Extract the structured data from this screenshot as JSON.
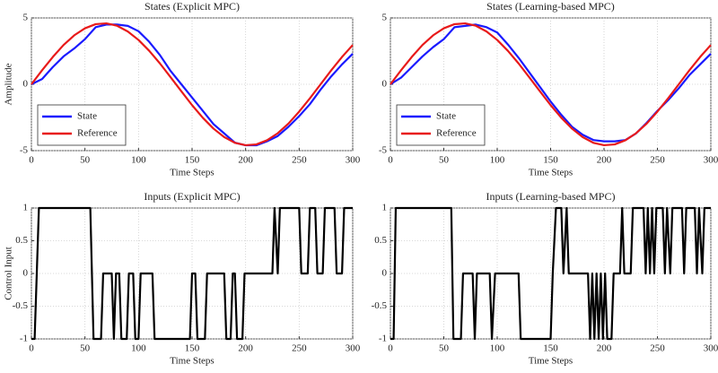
{
  "chart_data": [
    {
      "type": "line",
      "title": "States (Explicit MPC)",
      "xlabel": "Time Steps",
      "ylabel": "Amplitude",
      "x": [
        0,
        10,
        20,
        30,
        40,
        50,
        60,
        70,
        80,
        90,
        100,
        110,
        120,
        130,
        140,
        150,
        160,
        170,
        180,
        190,
        200,
        210,
        220,
        230,
        240,
        250,
        260,
        270,
        280,
        290,
        300
      ],
      "series": [
        {
          "name": "State",
          "color": "#1a1aff",
          "values": [
            0,
            0.4,
            1.3,
            2.1,
            2.7,
            3.4,
            4.3,
            4.5,
            4.5,
            4.4,
            4.0,
            3.2,
            2.2,
            1.0,
            0.0,
            -1.0,
            -2.0,
            -3.0,
            -3.7,
            -4.4,
            -4.6,
            -4.6,
            -4.3,
            -3.9,
            -3.2,
            -2.4,
            -1.5,
            -0.4,
            0.6,
            1.5,
            2.3
          ]
        },
        {
          "name": "Reference",
          "color": "#e81a1a",
          "values": [
            0,
            1.06,
            2.06,
            2.96,
            3.69,
            4.22,
            4.53,
            4.59,
            4.41,
            3.98,
            3.34,
            2.52,
            1.57,
            0.53,
            -0.53,
            -1.57,
            -2.52,
            -3.34,
            -3.98,
            -4.41,
            -4.59,
            -4.53,
            -4.22,
            -3.69,
            -2.96,
            -2.06,
            -1.06,
            0,
            1.06,
            2.06,
            2.96
          ]
        }
      ],
      "xlim": [
        0,
        300
      ],
      "xticks": [
        0,
        50,
        100,
        150,
        200,
        250,
        300
      ],
      "ylim": [
        -5,
        5
      ],
      "yticks": [
        -5,
        0,
        5
      ],
      "grid": true,
      "legend": "lower left"
    },
    {
      "type": "line",
      "title": "States (Learning-based MPC)",
      "xlabel": "Time Steps",
      "x": [
        0,
        10,
        20,
        30,
        40,
        50,
        60,
        70,
        80,
        90,
        100,
        110,
        120,
        130,
        140,
        150,
        160,
        170,
        180,
        190,
        200,
        210,
        220,
        230,
        240,
        250,
        260,
        270,
        280,
        290,
        300
      ],
      "series": [
        {
          "name": "State",
          "color": "#1a1aff",
          "values": [
            0,
            0.5,
            1.3,
            2.1,
            2.8,
            3.4,
            4.3,
            4.4,
            4.5,
            4.3,
            3.9,
            3.0,
            2.0,
            0.9,
            -0.2,
            -1.3,
            -2.3,
            -3.2,
            -3.8,
            -4.2,
            -4.3,
            -4.3,
            -4.2,
            -3.7,
            -2.9,
            -2.0,
            -1.2,
            -0.3,
            0.7,
            1.5,
            2.3
          ]
        },
        {
          "name": "Reference",
          "color": "#e81a1a",
          "values": [
            0,
            1.06,
            2.06,
            2.96,
            3.69,
            4.22,
            4.53,
            4.59,
            4.41,
            3.98,
            3.34,
            2.52,
            1.57,
            0.53,
            -0.53,
            -1.57,
            -2.52,
            -3.34,
            -3.98,
            -4.41,
            -4.59,
            -4.53,
            -4.22,
            -3.69,
            -2.96,
            -2.06,
            -1.06,
            0,
            1.06,
            2.06,
            2.96
          ]
        }
      ],
      "xlim": [
        0,
        300
      ],
      "xticks": [
        0,
        50,
        100,
        150,
        200,
        250,
        300
      ],
      "ylim": [
        -5,
        5
      ],
      "yticks": [
        -5,
        0,
        5
      ],
      "grid": true,
      "legend": "lower left"
    },
    {
      "type": "line",
      "title": "Inputs (Explicit MPC)",
      "xlabel": "Time Steps",
      "ylabel": "Control Input",
      "color": "#000000",
      "x": [
        0,
        3,
        5,
        7,
        55,
        58,
        65,
        67,
        75,
        77,
        79,
        82,
        84,
        89,
        91,
        95,
        97,
        100,
        102,
        113,
        115,
        148,
        150,
        153,
        155,
        162,
        164,
        180,
        182,
        186,
        188,
        190,
        192,
        197,
        199,
        225,
        227,
        230,
        232,
        250,
        252,
        258,
        260,
        265,
        267,
        272,
        274,
        283,
        285,
        290,
        292,
        300
      ],
      "values": [
        -1,
        -1,
        0,
        1,
        1,
        -1,
        -1,
        0,
        0,
        -1,
        0,
        0,
        -1,
        -1,
        0,
        0,
        -1,
        -1,
        0,
        0,
        -1,
        -1,
        0,
        0,
        -1,
        -1,
        0,
        0,
        -1,
        -1,
        0,
        0,
        -1,
        -1,
        0,
        0,
        1,
        0,
        1,
        1,
        0,
        0,
        1,
        1,
        0,
        0,
        1,
        1,
        0,
        0,
        1,
        1
      ],
      "xlim": [
        0,
        300
      ],
      "xticks": [
        0,
        50,
        100,
        150,
        200,
        250,
        300
      ],
      "ylim": [
        -1,
        1
      ],
      "yticks": [
        -1,
        -0.5,
        0,
        0.5,
        1
      ],
      "grid": true
    },
    {
      "type": "line",
      "title": "Inputs (Learning-based MPC)",
      "xlabel": "Time Steps",
      "color": "#000000",
      "x": [
        0,
        3,
        5,
        57,
        59,
        66,
        68,
        77,
        79,
        81,
        93,
        95,
        98,
        120,
        122,
        150,
        152,
        155,
        160,
        162,
        165,
        167,
        185,
        187,
        189,
        191,
        193,
        195,
        197,
        199,
        201,
        203,
        207,
        209,
        215,
        217,
        219,
        225,
        227,
        237,
        239,
        241,
        243,
        245,
        247,
        249,
        255,
        257,
        259,
        262,
        264,
        273,
        275,
        277,
        285,
        287,
        289,
        292,
        294,
        300
      ],
      "values": [
        -1,
        -1,
        1,
        1,
        -1,
        -1,
        0,
        0,
        -1,
        0,
        0,
        -1,
        0,
        0,
        -1,
        -1,
        0,
        1,
        1,
        0,
        1,
        0,
        0,
        -1,
        0,
        -1,
        0,
        -1,
        0,
        -1,
        0,
        -1,
        -1,
        0,
        0,
        1,
        0,
        0,
        1,
        1,
        0,
        1,
        0,
        1,
        0,
        1,
        1,
        0,
        1,
        0,
        1,
        1,
        0,
        1,
        1,
        0,
        1,
        0,
        1,
        1
      ],
      "xlim": [
        0,
        300
      ],
      "xticks": [
        0,
        50,
        100,
        150,
        200,
        250,
        300
      ],
      "ylim": [
        -1,
        1
      ],
      "yticks": [
        -1,
        -0.5,
        0,
        0.5,
        1
      ],
      "grid": true
    }
  ]
}
